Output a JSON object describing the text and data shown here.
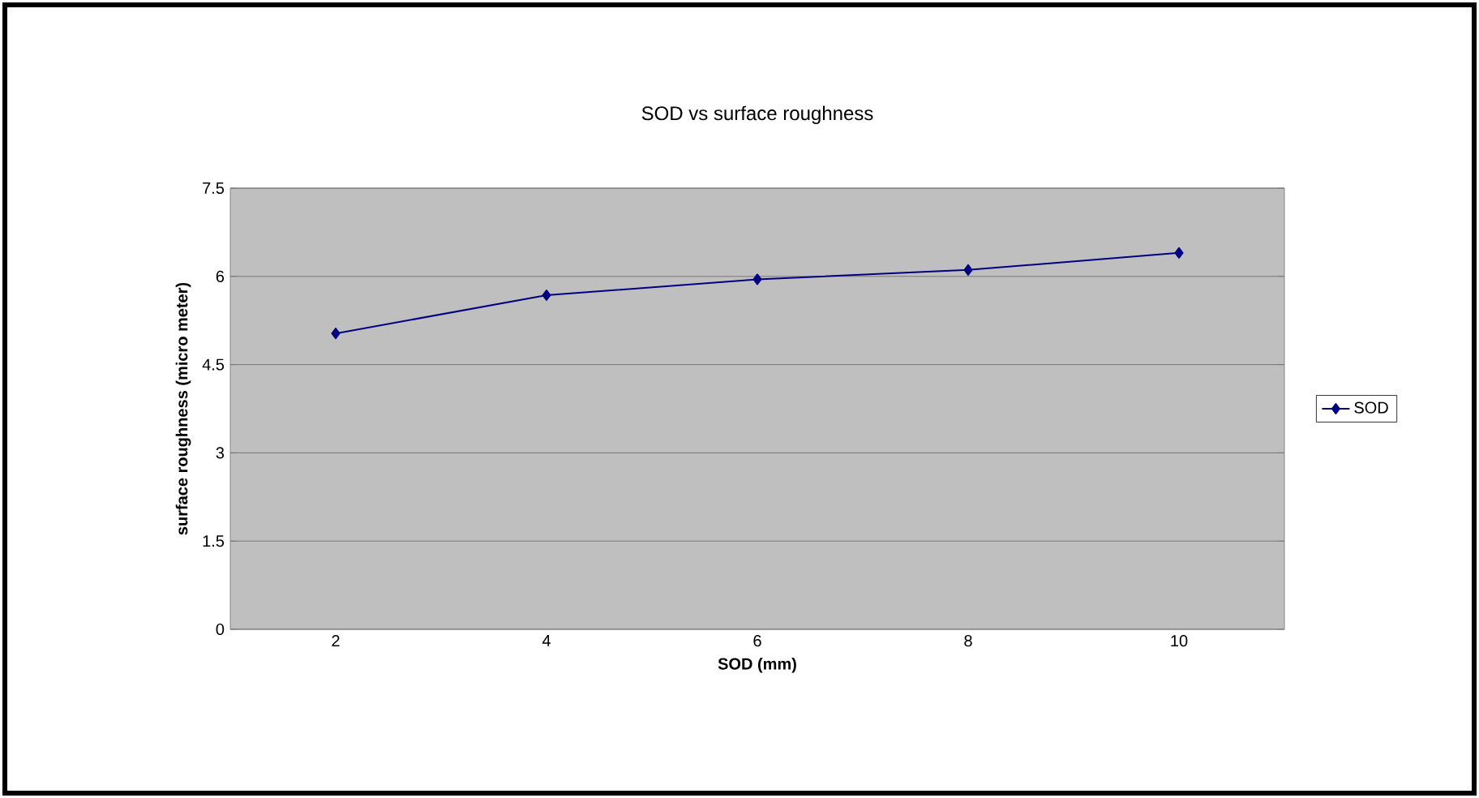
{
  "chart_data": {
    "type": "line",
    "title": "SOD vs surface roughness",
    "xlabel": "SOD (mm)",
    "ylabel": "surface roughness (micro meter)",
    "categories": [
      "2",
      "4",
      "6",
      "8",
      "10"
    ],
    "series": [
      {
        "name": "SOD",
        "color": "#000080",
        "values": [
          5.03,
          5.68,
          5.95,
          6.11,
          6.4
        ]
      }
    ],
    "ylim": [
      0,
      7.5
    ],
    "yticks": [
      0,
      1.5,
      3,
      4.5,
      6,
      7.5
    ],
    "grid": "y",
    "legend": "right",
    "marker": "diamond",
    "line_style": "solid"
  }
}
